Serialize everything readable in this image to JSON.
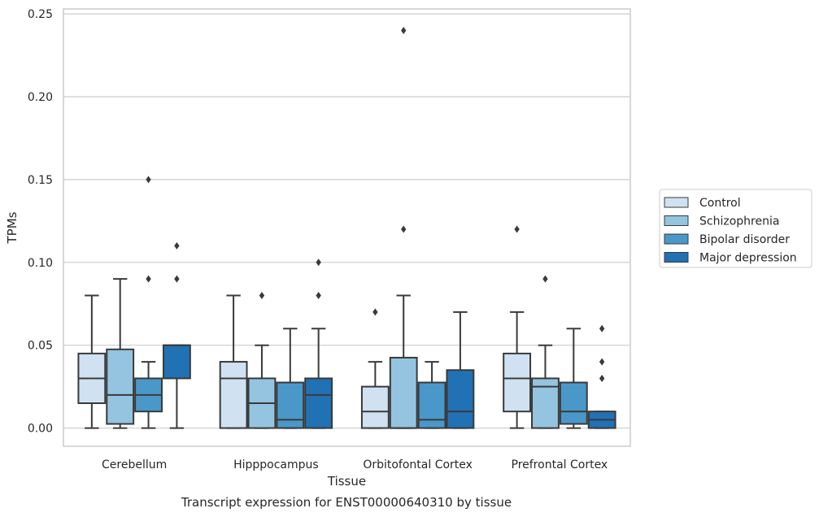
{
  "chart_data": {
    "type": "boxplot",
    "caption": "Transcript expression for ENST00000640310 by tissue",
    "xlabel": "Tissue",
    "ylabel": "TPMs",
    "ylim": [
      -0.011,
      0.253
    ],
    "yticks": [
      "0.00",
      "0.05",
      "0.10",
      "0.15",
      "0.20",
      "0.25"
    ],
    "ytick_values": [
      0,
      0.05,
      0.1,
      0.15,
      0.2,
      0.25
    ],
    "grid": true,
    "legend_position": "right",
    "categories": [
      "Cerebellum",
      "Hipppocampus",
      "Orbitofontal Cortex",
      "Prefrontal Cortex"
    ],
    "series": [
      {
        "name": "Control",
        "color": "#d0e1f2",
        "boxes": [
          {
            "whislo": 0.0,
            "q1": 0.015,
            "med": 0.03,
            "q3": 0.045,
            "whishi": 0.08,
            "fliers": []
          },
          {
            "whislo": 0.0,
            "q1": 0.0,
            "med": 0.03,
            "q3": 0.04,
            "whishi": 0.08,
            "fliers": []
          },
          {
            "whislo": 0.0,
            "q1": 0.0,
            "med": 0.01,
            "q3": 0.025,
            "whishi": 0.04,
            "fliers": [
              0.07
            ]
          },
          {
            "whislo": 0.0,
            "q1": 0.01,
            "med": 0.03,
            "q3": 0.045,
            "whishi": 0.07,
            "fliers": [
              0.12
            ]
          }
        ]
      },
      {
        "name": "Schizophrenia",
        "color": "#94c4df",
        "boxes": [
          {
            "whislo": 0.0,
            "q1": 0.0025,
            "med": 0.02,
            "q3": 0.0475,
            "whishi": 0.09,
            "fliers": []
          },
          {
            "whislo": 0.0,
            "q1": 0.0,
            "med": 0.015,
            "q3": 0.03,
            "whishi": 0.05,
            "fliers": [
              0.08
            ]
          },
          {
            "whislo": 0.0,
            "q1": 0.0,
            "med": 0.0,
            "q3": 0.0425,
            "whishi": 0.08,
            "fliers": [
              0.12,
              0.24
            ]
          },
          {
            "whislo": 0.0,
            "q1": 0.0,
            "med": 0.025,
            "q3": 0.03,
            "whishi": 0.05,
            "fliers": [
              0.09
            ]
          }
        ]
      },
      {
        "name": "Bipolar disorder",
        "color": "#4a98c9",
        "boxes": [
          {
            "whislo": 0.0,
            "q1": 0.01,
            "med": 0.02,
            "q3": 0.03,
            "whishi": 0.04,
            "fliers": [
              0.09,
              0.15
            ]
          },
          {
            "whislo": 0.0,
            "q1": 0.0,
            "med": 0.005,
            "q3": 0.0275,
            "whishi": 0.06,
            "fliers": []
          },
          {
            "whislo": 0.0,
            "q1": 0.0,
            "med": 0.005,
            "q3": 0.0275,
            "whishi": 0.04,
            "fliers": []
          },
          {
            "whislo": 0.0,
            "q1": 0.0025,
            "med": 0.01,
            "q3": 0.0275,
            "whishi": 0.06,
            "fliers": []
          }
        ]
      },
      {
        "name": "Major depression",
        "color": "#2171b5",
        "boxes": [
          {
            "whislo": 0.0,
            "q1": 0.03,
            "med": 0.05,
            "q3": 0.05,
            "whishi": 0.05,
            "fliers": [
              0.09,
              0.11
            ]
          },
          {
            "whislo": 0.0,
            "q1": 0.0,
            "med": 0.02,
            "q3": 0.03,
            "whishi": 0.06,
            "fliers": [
              0.08,
              0.1
            ]
          },
          {
            "whislo": 0.0,
            "q1": 0.0,
            "med": 0.01,
            "q3": 0.035,
            "whishi": 0.07,
            "fliers": []
          },
          {
            "whislo": 0.0,
            "q1": 0.0,
            "med": 0.005,
            "q3": 0.01,
            "whishi": 0.01,
            "fliers": [
              0.03,
              0.04,
              0.06
            ]
          }
        ]
      }
    ]
  }
}
